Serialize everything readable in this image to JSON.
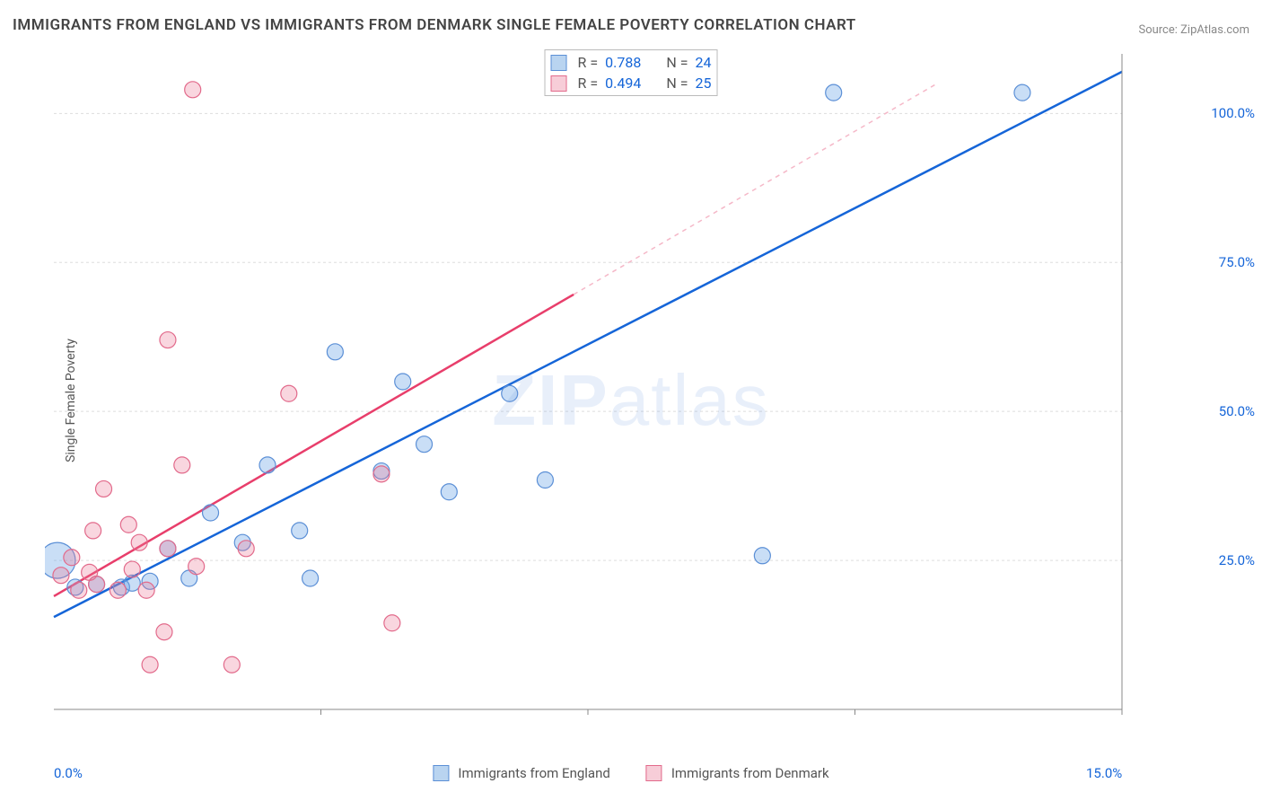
{
  "title": "IMMIGRANTS FROM ENGLAND VS IMMIGRANTS FROM DENMARK SINGLE FEMALE POVERTY CORRELATION CHART",
  "source": "Source: ZipAtlas.com",
  "watermark_a": "ZIP",
  "watermark_b": "atlas",
  "y_axis_label": "Single Female Poverty",
  "chart": {
    "type": "scatter",
    "background_color": "#ffffff",
    "grid_color": "#dddddd",
    "axis_color": "#888888",
    "xlim": [
      0,
      15
    ],
    "ylim": [
      0,
      110
    ],
    "x_ticks": [
      {
        "value": 0,
        "label": "0.0%",
        "color": "#1565d8"
      },
      {
        "value": 15,
        "label": "15.0%",
        "color": "#1565d8"
      }
    ],
    "y_ticks": [
      {
        "value": 25,
        "label": "25.0%",
        "color": "#1565d8"
      },
      {
        "value": 50,
        "label": "50.0%",
        "color": "#1565d8"
      },
      {
        "value": 75,
        "label": "75.0%",
        "color": "#1565d8"
      },
      {
        "value": 100,
        "label": "100.0%",
        "color": "#1565d8"
      }
    ],
    "x_grid_vals": [
      3.75,
      7.5,
      11.25,
      15
    ],
    "series": [
      {
        "name": "Immigrants from England",
        "swatch_fill": "#b9d4f0",
        "swatch_stroke": "#5b8fd6",
        "marker_fill": "rgba(100,160,230,0.35)",
        "marker_stroke": "#5b8fd6",
        "marker_radius": 9,
        "line_color": "#1565d8",
        "line_dash_color": "#a9c3ea",
        "stats": {
          "R_label": "R =",
          "R": "0.788",
          "N_label": "N =",
          "N": "24"
        },
        "trend": {
          "x1": 0,
          "y1": 15.5,
          "x2": 15,
          "y2": 107,
          "solid_until_x": 15
        },
        "points": [
          {
            "x": 0.05,
            "y": 25,
            "r": 20
          },
          {
            "x": 0.3,
            "y": 20.5
          },
          {
            "x": 0.6,
            "y": 21
          },
          {
            "x": 0.95,
            "y": 20.5
          },
          {
            "x": 1.1,
            "y": 21.2
          },
          {
            "x": 1.35,
            "y": 21.5
          },
          {
            "x": 1.6,
            "y": 27
          },
          {
            "x": 1.9,
            "y": 22
          },
          {
            "x": 2.2,
            "y": 33
          },
          {
            "x": 2.65,
            "y": 28
          },
          {
            "x": 3.0,
            "y": 41
          },
          {
            "x": 3.45,
            "y": 30
          },
          {
            "x": 3.6,
            "y": 22
          },
          {
            "x": 3.95,
            "y": 60
          },
          {
            "x": 4.6,
            "y": 40
          },
          {
            "x": 4.9,
            "y": 55
          },
          {
            "x": 5.2,
            "y": 44.5
          },
          {
            "x": 5.55,
            "y": 36.5
          },
          {
            "x": 6.4,
            "y": 53
          },
          {
            "x": 6.9,
            "y": 38.5
          },
          {
            "x": 9.95,
            "y": 25.8
          },
          {
            "x": 10.95,
            "y": 103.5
          },
          {
            "x": 13.6,
            "y": 103.5
          }
        ]
      },
      {
        "name": "Immigrants from Denmark",
        "swatch_fill": "#f7cdd8",
        "swatch_stroke": "#e26a8b",
        "marker_fill": "rgba(235,120,150,0.3)",
        "marker_stroke": "#e26a8b",
        "marker_radius": 9,
        "line_color": "#e83e6b",
        "line_dash_color": "#f5b8c8",
        "stats": {
          "R_label": "R =",
          "R": "0.494",
          "N_label": "N =",
          "N": "25"
        },
        "trend": {
          "x1": 0,
          "y1": 19,
          "x2": 12.4,
          "y2": 105,
          "solid_until_x": 7.3
        },
        "points": [
          {
            "x": 0.1,
            "y": 22.5
          },
          {
            "x": 0.25,
            "y": 25.5
          },
          {
            "x": 0.35,
            "y": 20
          },
          {
            "x": 0.5,
            "y": 23
          },
          {
            "x": 0.55,
            "y": 30
          },
          {
            "x": 0.6,
            "y": 21
          },
          {
            "x": 0.7,
            "y": 37
          },
          {
            "x": 0.9,
            "y": 20
          },
          {
            "x": 1.05,
            "y": 31
          },
          {
            "x": 1.1,
            "y": 23.5
          },
          {
            "x": 1.2,
            "y": 28
          },
          {
            "x": 1.3,
            "y": 20
          },
          {
            "x": 1.35,
            "y": 7.5
          },
          {
            "x": 1.55,
            "y": 13
          },
          {
            "x": 1.6,
            "y": 62
          },
          {
            "x": 1.6,
            "y": 27
          },
          {
            "x": 1.8,
            "y": 41
          },
          {
            "x": 1.95,
            "y": 104
          },
          {
            "x": 2.0,
            "y": 24
          },
          {
            "x": 2.5,
            "y": 7.5
          },
          {
            "x": 2.7,
            "y": 27
          },
          {
            "x": 3.3,
            "y": 53
          },
          {
            "x": 4.6,
            "y": 39.5
          },
          {
            "x": 4.75,
            "y": 14.5
          }
        ]
      }
    ]
  }
}
